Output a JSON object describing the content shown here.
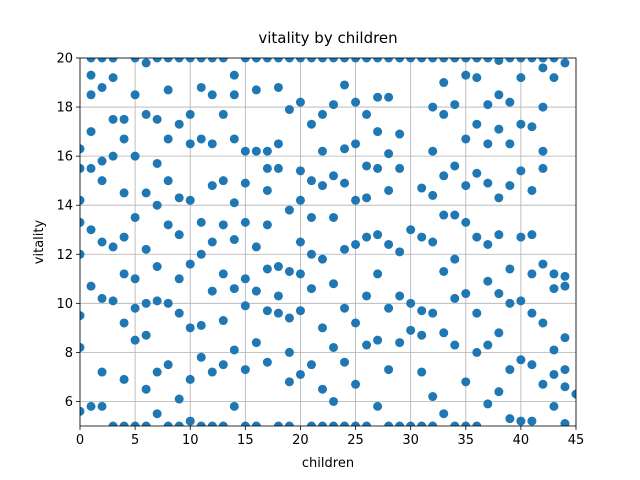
{
  "chart_data": {
    "type": "scatter",
    "title": "vitality by children",
    "xlabel": "children",
    "ylabel": "vitality",
    "color": "#1f77b4",
    "grid": true,
    "xlim": [
      0,
      45
    ],
    "ylim": [
      5,
      20
    ],
    "xticks": [
      0,
      5,
      10,
      15,
      20,
      25,
      30,
      35,
      40,
      45
    ],
    "yticks": [
      6,
      8,
      10,
      12,
      14,
      16,
      18,
      20
    ],
    "x": [
      0,
      0,
      0,
      0,
      0,
      0,
      0,
      0,
      1,
      1,
      1,
      1,
      1,
      1,
      1,
      1,
      2,
      2,
      2,
      2,
      2,
      2,
      2,
      2,
      3,
      3,
      3,
      3,
      3,
      3,
      3,
      4,
      4,
      4,
      4,
      4,
      4,
      4,
      4,
      5,
      5,
      5,
      5,
      5,
      5,
      5,
      5,
      6,
      6,
      6,
      6,
      6,
      6,
      6,
      6,
      7,
      7,
      7,
      7,
      7,
      7,
      7,
      7,
      8,
      8,
      8,
      8,
      8,
      8,
      8,
      8,
      9,
      9,
      9,
      9,
      9,
      9,
      9,
      9,
      10,
      10,
      10,
      10,
      10,
      10,
      10,
      10,
      11,
      11,
      11,
      11,
      11,
      11,
      11,
      11,
      12,
      12,
      12,
      12,
      12,
      12,
      12,
      12,
      13,
      13,
      13,
      13,
      13,
      13,
      13,
      13,
      14,
      14,
      14,
      14,
      14,
      14,
      14,
      14,
      15,
      15,
      15,
      15,
      15,
      15,
      15,
      15,
      16,
      16,
      16,
      16,
      16,
      16,
      16,
      17,
      17,
      17,
      17,
      17,
      17,
      17,
      17,
      18,
      18,
      18,
      18,
      18,
      18,
      18,
      18,
      19,
      19,
      19,
      19,
      19,
      19,
      19,
      19,
      20,
      20,
      20,
      20,
      20,
      20,
      20,
      20,
      21,
      21,
      21,
      21,
      21,
      21,
      21,
      21,
      22,
      22,
      22,
      22,
      22,
      22,
      22,
      22,
      23,
      23,
      23,
      23,
      23,
      23,
      23,
      23,
      24,
      24,
      24,
      24,
      24,
      24,
      24,
      24,
      25,
      25,
      25,
      25,
      25,
      25,
      25,
      25,
      26,
      26,
      26,
      26,
      26,
      26,
      26,
      26,
      27,
      27,
      27,
      27,
      27,
      27,
      27,
      27,
      28,
      28,
      28,
      28,
      28,
      28,
      28,
      28,
      29,
      29,
      29,
      29,
      29,
      29,
      29,
      30,
      30,
      30,
      30,
      30,
      31,
      31,
      31,
      31,
      31,
      31,
      31,
      32,
      32,
      32,
      32,
      32,
      32,
      32,
      32,
      33,
      33,
      33,
      33,
      33,
      33,
      33,
      33,
      34,
      34,
      34,
      34,
      34,
      34,
      34,
      34,
      35,
      35,
      35,
      35,
      35,
      35,
      35,
      35,
      36,
      36,
      36,
      36,
      36,
      36,
      36,
      36,
      37,
      37,
      37,
      37,
      37,
      37,
      37,
      37,
      38,
      38,
      38,
      38,
      38,
      38,
      38,
      38,
      39,
      39,
      39,
      39,
      39,
      39,
      39,
      39,
      40,
      40,
      40,
      40,
      40,
      40,
      40,
      40,
      41,
      41,
      41,
      41,
      41,
      41,
      41,
      41,
      42,
      42,
      42,
      42,
      42,
      42,
      42,
      42,
      43,
      43,
      43,
      43,
      43,
      43,
      43,
      44,
      44,
      44,
      44,
      44,
      44,
      44,
      45
    ],
    "y": [
      16.3,
      15.5,
      14.2,
      13.3,
      12,
      9.5,
      8.2,
      5.6,
      20,
      19.3,
      18.5,
      17,
      15.5,
      13,
      10.7,
      5.8,
      20,
      18.8,
      15.8,
      15,
      12.5,
      10.2,
      7.2,
      5.8,
      20,
      19.2,
      17.5,
      16,
      12.3,
      10.1,
      5,
      17.5,
      16.7,
      14.5,
      12.7,
      11.2,
      9.2,
      6.9,
      5,
      20,
      18.5,
      16,
      13.5,
      11,
      9.8,
      8.5,
      5,
      19.8,
      17.7,
      14.5,
      12.2,
      10,
      8.7,
      6.5,
      5,
      20,
      17.5,
      15.7,
      14,
      11.5,
      10.1,
      7.2,
      5.5,
      20,
      18.7,
      16.7,
      15,
      13.2,
      10,
      7.5,
      5,
      20,
      17.3,
      14.3,
      12.8,
      11,
      9.6,
      6.1,
      5,
      20,
      17.7,
      16.5,
      14.2,
      11.6,
      9,
      6.9,
      5.2,
      20,
      18.8,
      16.7,
      13.3,
      12,
      9.1,
      7.8,
      5,
      20,
      18.5,
      16.5,
      14.8,
      12.5,
      10.5,
      7.2,
      5,
      20,
      17.7,
      15,
      13.2,
      11.2,
      9.3,
      7.5,
      5,
      19.3,
      18.5,
      16.7,
      14.1,
      12.6,
      10.6,
      8.1,
      5.8,
      20,
      16.2,
      14.9,
      13.3,
      11,
      9.9,
      7.3,
      5,
      20,
      18.7,
      16.2,
      12.3,
      10.5,
      8.4,
      5,
      20,
      16.2,
      15.5,
      14.6,
      13.2,
      11.4,
      9.7,
      7.6,
      20,
      18.8,
      16.5,
      15.5,
      11.5,
      10.3,
      9.6,
      5,
      20,
      17.9,
      13.8,
      11.3,
      9.4,
      8,
      6.8,
      5,
      20,
      18.2,
      15.4,
      14.2,
      12.5,
      11.2,
      9.7,
      7.1,
      20,
      17.3,
      15,
      13.5,
      12,
      10.6,
      7.5,
      5,
      20,
      17.7,
      16.2,
      14.8,
      11.8,
      9,
      6.5,
      5,
      20,
      18.1,
      15.2,
      13.5,
      10.8,
      8.2,
      6,
      5,
      20,
      18.9,
      16.3,
      14.9,
      12.2,
      9.8,
      7.6,
      5,
      20,
      18.2,
      16.5,
      14.2,
      12.4,
      9.2,
      6.7,
      5,
      20,
      17.7,
      15.6,
      14.3,
      12.7,
      10.3,
      8.3,
      5,
      20,
      18.4,
      17,
      15.5,
      12.8,
      11.2,
      8.5,
      5.8,
      20,
      18.4,
      16.1,
      14.6,
      12.4,
      9.8,
      7.3,
      5,
      20,
      16.9,
      15.5,
      12.1,
      10.3,
      8.4,
      5,
      20,
      13,
      10,
      8.9,
      5,
      20,
      14.7,
      12.7,
      9.7,
      8.7,
      7.2,
      5,
      20,
      18,
      16.2,
      14.4,
      12.5,
      9.6,
      6.2,
      5,
      20,
      19,
      17.7,
      15.2,
      13.6,
      11.3,
      8.8,
      5.5,
      20,
      18.1,
      15.6,
      13.6,
      11.8,
      10.2,
      8.3,
      5,
      20,
      19.3,
      16.7,
      14.8,
      13.3,
      10.4,
      6.8,
      5,
      20,
      19.2,
      17.3,
      15.3,
      12.7,
      9.6,
      8,
      5,
      20,
      18.1,
      16.5,
      14.9,
      12.4,
      10.9,
      8.3,
      5.9,
      19.9,
      18.5,
      17.1,
      14.3,
      12.8,
      10.4,
      8.8,
      6.4,
      20,
      18.2,
      16.5,
      14.8,
      11.4,
      10,
      7.3,
      5.3,
      20,
      19.2,
      17.3,
      15.4,
      12.7,
      10.1,
      7.7,
      5.2,
      20,
      17.2,
      14.6,
      12.8,
      11.2,
      9.6,
      7.5,
      5.2,
      20,
      19.6,
      18,
      16.2,
      15.5,
      11.6,
      9.2,
      6.7,
      20,
      19.2,
      11.2,
      10.6,
      8.1,
      7.1,
      5.8,
      19.8,
      11.1,
      10.7,
      8.6,
      7.3,
      6.6,
      5.1,
      6.3
    ]
  }
}
